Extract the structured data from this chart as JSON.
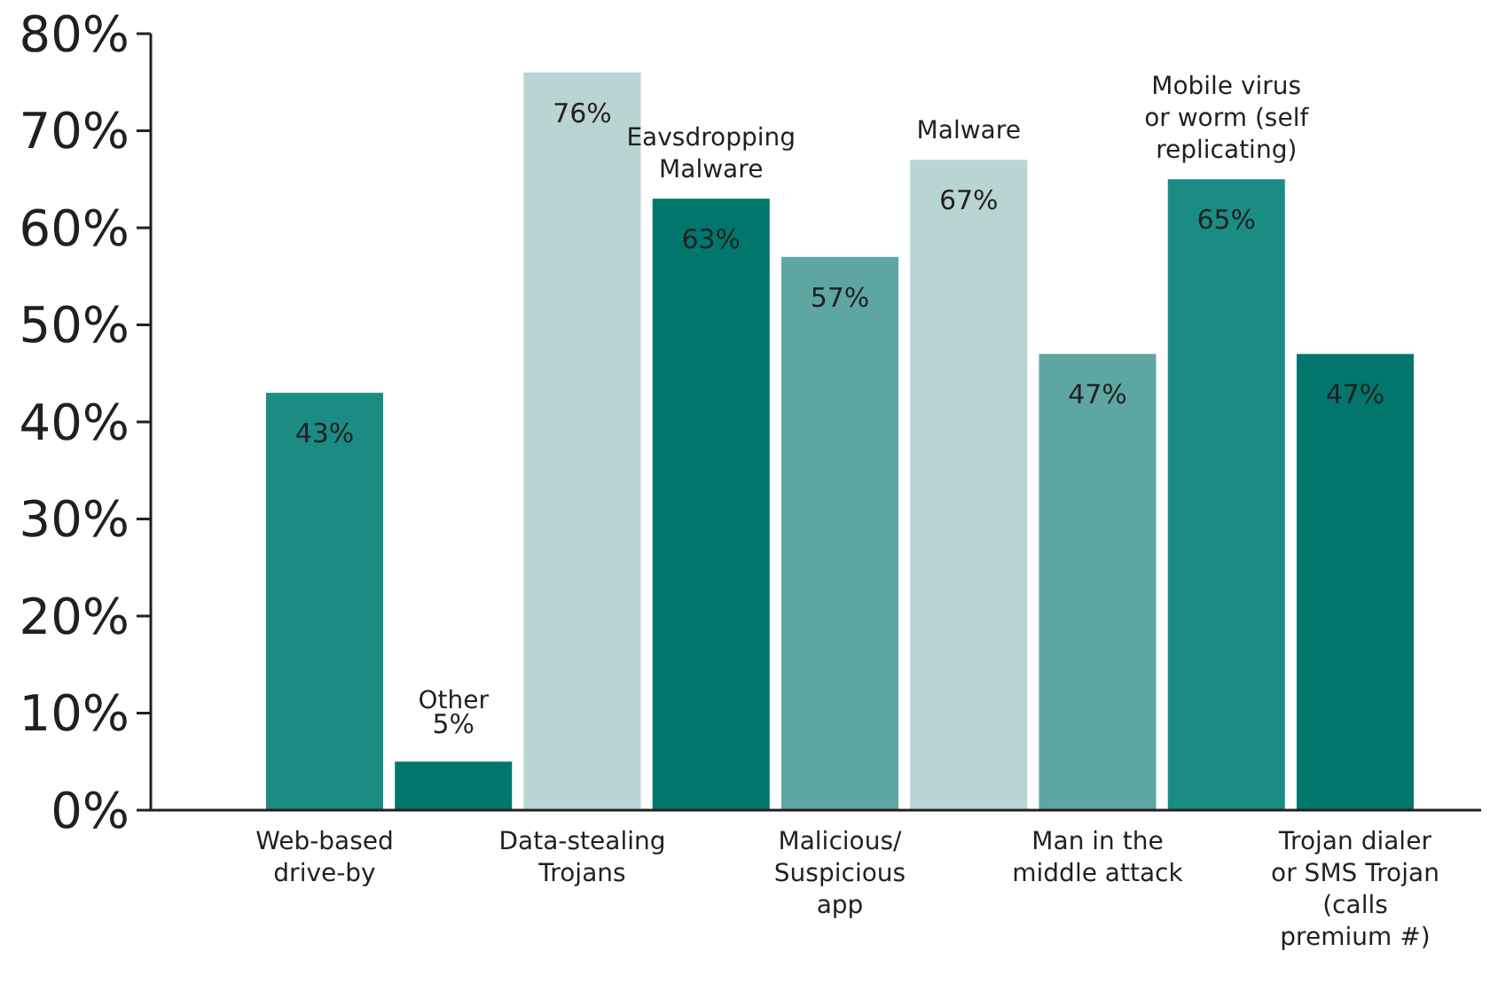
{
  "chart_data": {
    "type": "bar",
    "categories": [
      "Web-based drive-by",
      "Other",
      "Data-stealing Trojans",
      "Eavsdropping Malware",
      "Malicious/ Suspicious app",
      "Malware",
      "Man in the middle attack",
      "Mobile virus or worm (self replicating)",
      "Trojan dialer or SMS Trojan (calls premium #)"
    ],
    "values": [
      43,
      5,
      76,
      63,
      57,
      67,
      47,
      65,
      47
    ],
    "colors": [
      "#1a8c84",
      "#00766c",
      "#b8d4d3",
      "#00766c",
      "#5ea6a1",
      "#b8d4d3",
      "#5ea6a1",
      "#1a8c84",
      "#00766c"
    ],
    "value_labels": [
      "43%",
      "5%",
      "76%",
      "63%",
      "57%",
      "67%",
      "47%",
      "65%",
      "47%"
    ],
    "ylim": [
      0,
      80
    ],
    "yticks": [
      {
        "value": 0,
        "label": "0%"
      },
      {
        "value": 10,
        "label": "10%"
      },
      {
        "value": 20,
        "label": "20%"
      },
      {
        "value": 30,
        "label": "30%"
      },
      {
        "value": 40,
        "label": "40%"
      },
      {
        "value": 50,
        "label": "50%"
      },
      {
        "value": 60,
        "label": "60%"
      },
      {
        "value": 70,
        "label": "70%"
      },
      {
        "value": 80,
        "label": "80%"
      }
    ],
    "grid": false
  }
}
